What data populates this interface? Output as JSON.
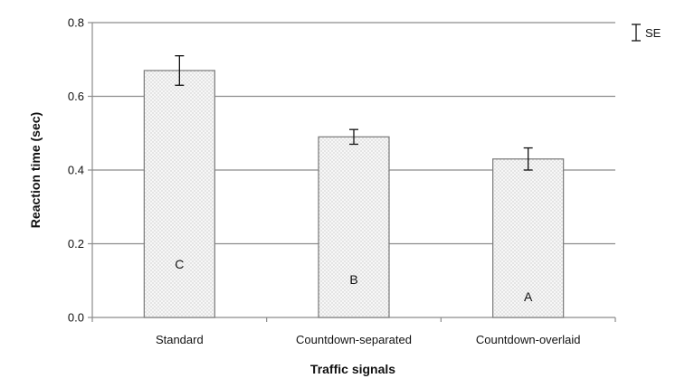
{
  "chart_data": {
    "type": "bar",
    "categories": [
      "Standard",
      "Countdown-separated",
      "Countdown-overlaid"
    ],
    "values": [
      0.67,
      0.49,
      0.43
    ],
    "error_bars": {
      "type": "SE",
      "lower": [
        0.63,
        0.47,
        0.4
      ],
      "upper": [
        0.71,
        0.51,
        0.46
      ]
    },
    "bar_labels": [
      "C",
      "B",
      "A"
    ],
    "xlabel": "Traffic signals",
    "ylabel": "Reaction time (sec)",
    "ylim": [
      0.0,
      0.8
    ],
    "yticks": [
      "0.0",
      "0.2",
      "0.4",
      "0.6",
      "0.8"
    ],
    "grid": true,
    "legend": {
      "label": "SE",
      "placement": "top-right"
    },
    "colors": {
      "bar_fill": "#e6e6e6",
      "bar_stroke": "#7a7a7a",
      "grid": "#8c8c8c",
      "text": "#111111"
    }
  }
}
